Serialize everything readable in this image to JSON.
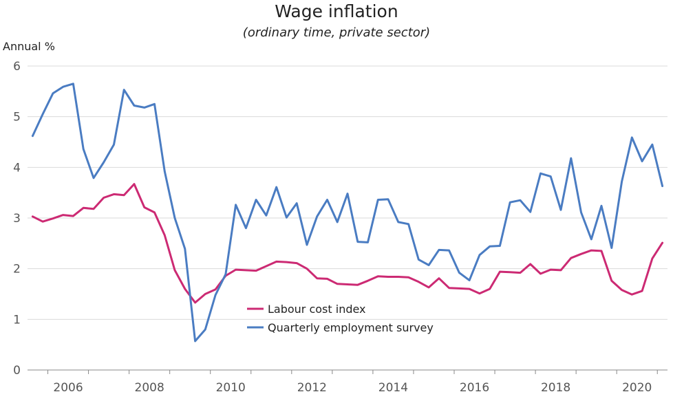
{
  "chart_data": {
    "type": "line",
    "title": "Wage inflation",
    "subtitle": "(ordinary time, private sector)",
    "ylabel": "Annual %",
    "xlabel": "",
    "ylim": [
      0,
      6
    ],
    "xlim": [
      2005.5,
      2021.25
    ],
    "yticks": [
      0,
      1,
      2,
      3,
      4,
      5,
      6
    ],
    "xticks": [
      2006,
      2008,
      2010,
      2012,
      2014,
      2016,
      2018,
      2020
    ],
    "grid": "horizontal",
    "legend": "lower-middle",
    "series": [
      {
        "name": "Labour cost index",
        "color": "#cc2a73",
        "x": [
          2005.625,
          2005.875,
          2006.125,
          2006.375,
          2006.625,
          2006.875,
          2007.125,
          2007.375,
          2007.625,
          2007.875,
          2008.125,
          2008.375,
          2008.625,
          2008.875,
          2009.125,
          2009.375,
          2009.625,
          2009.875,
          2010.125,
          2010.375,
          2010.625,
          2010.875,
          2011.125,
          2011.375,
          2011.625,
          2011.875,
          2012.125,
          2012.375,
          2012.625,
          2012.875,
          2013.125,
          2013.375,
          2013.625,
          2013.875,
          2014.125,
          2014.375,
          2014.625,
          2014.875,
          2015.125,
          2015.375,
          2015.625,
          2015.875,
          2016.125,
          2016.375,
          2016.625,
          2016.875,
          2017.125,
          2017.375,
          2017.625,
          2017.875,
          2018.125,
          2018.375,
          2018.625,
          2018.875,
          2019.125,
          2019.375,
          2019.625,
          2019.875,
          2020.125,
          2020.375,
          2020.625,
          2020.875,
          2021.125
        ],
        "values": [
          3.03,
          2.93,
          2.99,
          3.06,
          3.04,
          3.2,
          3.18,
          3.4,
          3.47,
          3.45,
          3.67,
          3.21,
          3.11,
          2.66,
          1.97,
          1.6,
          1.33,
          1.5,
          1.59,
          1.86,
          1.98,
          1.97,
          1.96,
          2.05,
          2.14,
          2.13,
          2.11,
          2.0,
          1.81,
          1.8,
          1.7,
          1.69,
          1.68,
          1.76,
          1.85,
          1.84,
          1.84,
          1.83,
          1.74,
          1.63,
          1.81,
          1.62,
          1.61,
          1.6,
          1.51,
          1.6,
          1.94,
          1.93,
          1.92,
          2.09,
          1.9,
          1.98,
          1.97,
          2.21,
          2.29,
          2.36,
          2.35,
          1.76,
          1.58,
          1.49,
          1.56,
          2.2,
          2.51
        ]
      },
      {
        "name": "Quarterly employment survey",
        "color": "#4a7cc2",
        "x": [
          2005.625,
          2005.875,
          2006.125,
          2006.375,
          2006.625,
          2006.875,
          2007.125,
          2007.375,
          2007.625,
          2007.875,
          2008.125,
          2008.375,
          2008.625,
          2008.875,
          2009.125,
          2009.375,
          2009.625,
          2009.875,
          2010.125,
          2010.375,
          2010.625,
          2010.875,
          2011.125,
          2011.375,
          2011.625,
          2011.875,
          2012.125,
          2012.375,
          2012.625,
          2012.875,
          2013.125,
          2013.375,
          2013.625,
          2013.875,
          2014.125,
          2014.375,
          2014.625,
          2014.875,
          2015.125,
          2015.375,
          2015.625,
          2015.875,
          2016.125,
          2016.375,
          2016.625,
          2016.875,
          2017.125,
          2017.375,
          2017.625,
          2017.875,
          2018.125,
          2018.375,
          2018.625,
          2018.875,
          2019.125,
          2019.375,
          2019.625,
          2019.875,
          2020.125,
          2020.375,
          2020.625,
          2020.875,
          2021.125
        ],
        "values": [
          4.62,
          5.05,
          5.46,
          5.59,
          5.65,
          4.36,
          3.79,
          4.1,
          4.45,
          5.53,
          5.22,
          5.18,
          5.25,
          3.92,
          3.0,
          2.39,
          0.57,
          0.8,
          1.48,
          1.89,
          3.26,
          2.8,
          3.36,
          3.05,
          3.61,
          3.01,
          3.29,
          2.47,
          3.03,
          3.36,
          2.92,
          3.48,
          2.53,
          2.52,
          3.36,
          3.37,
          2.92,
          2.88,
          2.18,
          2.07,
          2.37,
          2.36,
          1.92,
          1.77,
          2.27,
          2.44,
          2.45,
          3.31,
          3.35,
          3.12,
          3.88,
          3.82,
          3.16,
          4.18,
          3.11,
          2.58,
          3.24,
          2.41,
          3.72,
          4.59,
          4.12,
          4.45,
          3.63
        ]
      }
    ]
  }
}
